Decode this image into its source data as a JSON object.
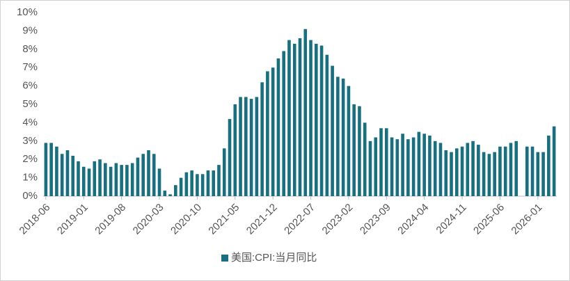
{
  "chart_data": {
    "type": "bar",
    "categories": [
      "2018-06",
      null,
      null,
      null,
      null,
      null,
      null,
      "2019-01",
      null,
      null,
      null,
      null,
      null,
      null,
      "2019-08",
      null,
      null,
      null,
      null,
      null,
      null,
      "2020-03",
      null,
      null,
      null,
      null,
      null,
      null,
      "2020-10",
      null,
      null,
      null,
      null,
      null,
      null,
      "2021-05",
      null,
      null,
      null,
      null,
      null,
      null,
      "2021-12",
      null,
      null,
      null,
      null,
      null,
      null,
      "2022-07",
      null,
      null,
      null,
      null,
      null,
      null,
      "2023-02",
      null,
      null,
      null,
      null,
      null,
      null,
      "2023-09",
      null,
      null,
      null,
      null,
      null,
      null,
      "2024-04",
      null,
      null,
      null,
      null,
      null,
      null,
      "2024-11",
      null,
      null,
      null,
      null,
      null,
      null,
      "2025-06",
      null,
      null,
      null,
      null,
      null,
      null,
      "2026-01",
      null,
      null,
      null
    ],
    "series": [
      {
        "name": "美国:CPI:当月同比",
        "color": "#17707f",
        "values": [
          2.9,
          2.9,
          2.7,
          2.3,
          2.5,
          2.2,
          1.9,
          1.6,
          1.5,
          1.9,
          2.0,
          1.8,
          1.6,
          1.8,
          1.7,
          1.7,
          1.8,
          2.1,
          2.3,
          2.5,
          2.3,
          1.5,
          0.3,
          0.1,
          0.6,
          1.0,
          1.3,
          1.4,
          1.2,
          1.2,
          1.4,
          1.4,
          1.7,
          2.6,
          4.2,
          5.0,
          5.4,
          5.4,
          5.3,
          5.4,
          6.2,
          6.8,
          7.0,
          7.5,
          7.9,
          8.5,
          8.3,
          8.6,
          9.1,
          8.5,
          8.3,
          8.2,
          7.7,
          7.1,
          6.5,
          6.4,
          6.0,
          5.0,
          4.9,
          4.0,
          3.0,
          3.2,
          3.7,
          3.7,
          3.2,
          3.1,
          3.4,
          3.1,
          3.2,
          3.5,
          3.4,
          3.3,
          3.0,
          2.9,
          2.5,
          2.4,
          2.6,
          2.7,
          2.9,
          3.0,
          2.8,
          2.4,
          2.3,
          2.4,
          2.7,
          2.7,
          2.9,
          3.0,
          null,
          2.7,
          2.7,
          2.4,
          2.4,
          3.3,
          3.8
        ]
      }
    ],
    "ylim": [
      0,
      10
    ],
    "yticks": [
      {
        "value": 0,
        "label": "0%"
      },
      {
        "value": 1,
        "label": "1%"
      },
      {
        "value": 2,
        "label": "2%"
      },
      {
        "value": 3,
        "label": "3%"
      },
      {
        "value": 4,
        "label": "4%"
      },
      {
        "value": 5,
        "label": "5%"
      },
      {
        "value": 6,
        "label": "6%"
      },
      {
        "value": 7,
        "label": "7%"
      },
      {
        "value": 8,
        "label": "8%"
      },
      {
        "value": 9,
        "label": "9%"
      },
      {
        "value": 10,
        "label": "10%"
      }
    ],
    "legend": "bottom"
  }
}
